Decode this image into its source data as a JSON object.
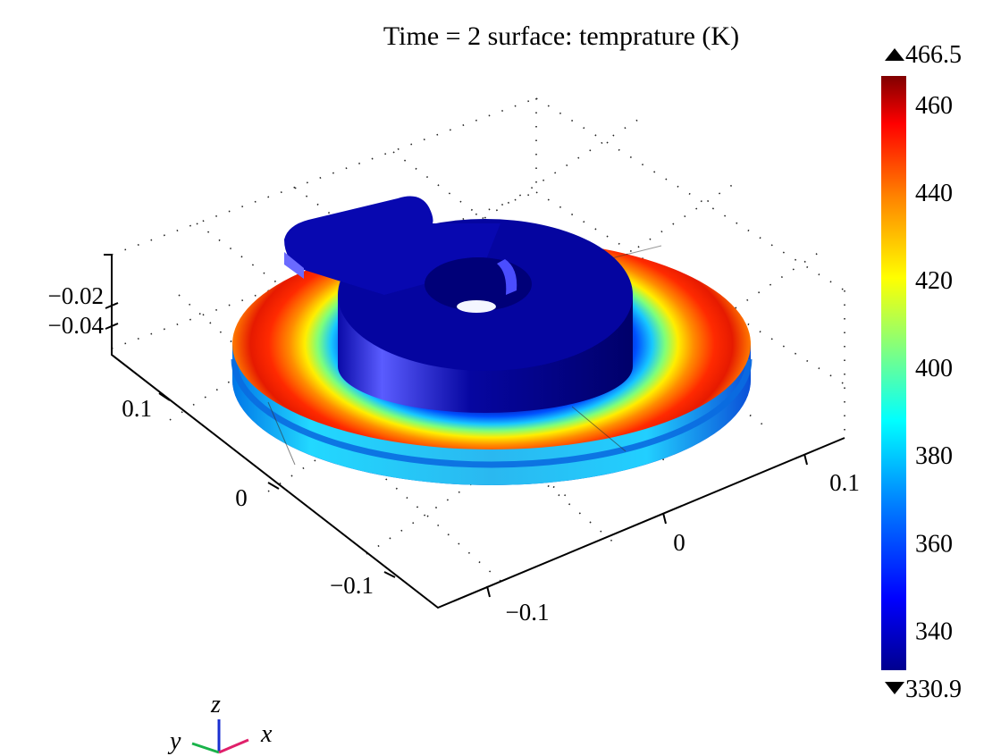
{
  "chart_data": {
    "type": "heatmap",
    "title": "Time = 2 surface: temprature (K)",
    "quantity": "temperature",
    "unit": "K",
    "time": 2,
    "colorbar": {
      "max": 466.5,
      "min": 330.9,
      "max_label": "466.5",
      "min_label": "330.9",
      "ticks": [
        460,
        440,
        420,
        400,
        380,
        360,
        340
      ],
      "tick_labels": [
        "460",
        "440",
        "420",
        "400",
        "380",
        "360",
        "340"
      ],
      "colormap": "rainbow",
      "placement": "right"
    },
    "x_axis": {
      "name": "x",
      "ticks": [
        -0.1,
        0,
        0.1
      ],
      "tick_labels": [
        "−0.1",
        "0",
        "0.1"
      ]
    },
    "y_axis": {
      "name": "y",
      "ticks": [
        -0.1,
        0,
        0.1
      ],
      "tick_labels": [
        "−0.1",
        "0",
        "0.1"
      ]
    },
    "z_axis": {
      "name": "z",
      "ticks": [
        -0.02,
        -0.04
      ],
      "tick_labels": [
        "−0.02",
        "−0.04"
      ]
    },
    "triad": {
      "labels": [
        "y",
        "z",
        "x"
      ]
    },
    "grid": true
  }
}
